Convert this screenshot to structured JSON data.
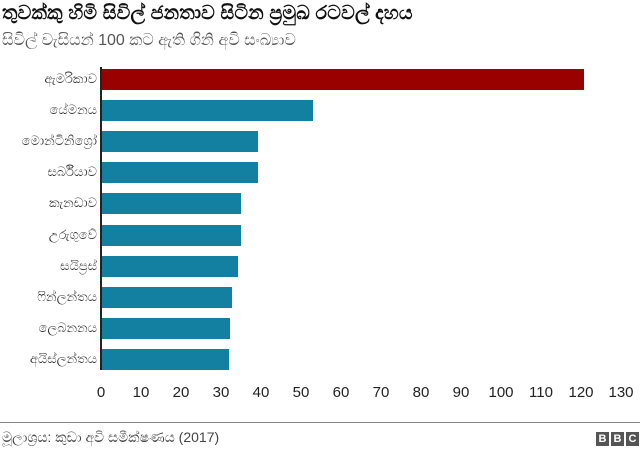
{
  "header": {
    "title": "තුවක්කු හිමි සිවිල් ජනතාව සිටින ප්‍රමුඛ රටවල් දහය",
    "subtitle": "සිවිල් වැසියන් 100 කට ඇති ගිනි අවි සංඛ්‍යාව"
  },
  "footer": {
    "source": "මූලාශ්‍රය: කුඩා අවි සමීක්ෂණය (2017)",
    "logo": [
      "B",
      "B",
      "C"
    ]
  },
  "colors": {
    "highlight": "#990000",
    "bar": "#1380a1",
    "axis": "#222222"
  },
  "chart_data": {
    "type": "bar",
    "orientation": "horizontal",
    "title": "තුවක්කු හිමි සිවිල් ජනතාව සිටින ප්‍රමුඛ රටවල් දහය",
    "subtitle": "සිවිල් වැසියන් 100 කට ඇති ගිනි අවි සංඛ්‍යාව",
    "categories": [
      "ඇමරිකාව",
      "යේමනය",
      "මොන්ටිනිග්‍රෝ",
      "සර්බියාව",
      "කැනඩාව",
      "උරුගුවේ",
      "සයිප්‍රස්",
      "ෆින්ලන්තය",
      "ලෙබනනය",
      "අයිස්ලන්තය"
    ],
    "values": [
      120.5,
      52.8,
      39.1,
      39.1,
      34.7,
      34.7,
      34.0,
      32.4,
      31.9,
      31.7
    ],
    "highlight_index": 0,
    "xlabel": "",
    "ylabel": "",
    "xlim": [
      0,
      130
    ],
    "xticks": [
      "0",
      "10",
      "20",
      "30",
      "40",
      "50",
      "60",
      "70",
      "80",
      "90",
      "100",
      "110",
      "120",
      "130"
    ],
    "grid": false,
    "legend": null,
    "source": "මූලාශ්‍රය: කුඩා අවි සමීක්ෂණය (2017)"
  }
}
